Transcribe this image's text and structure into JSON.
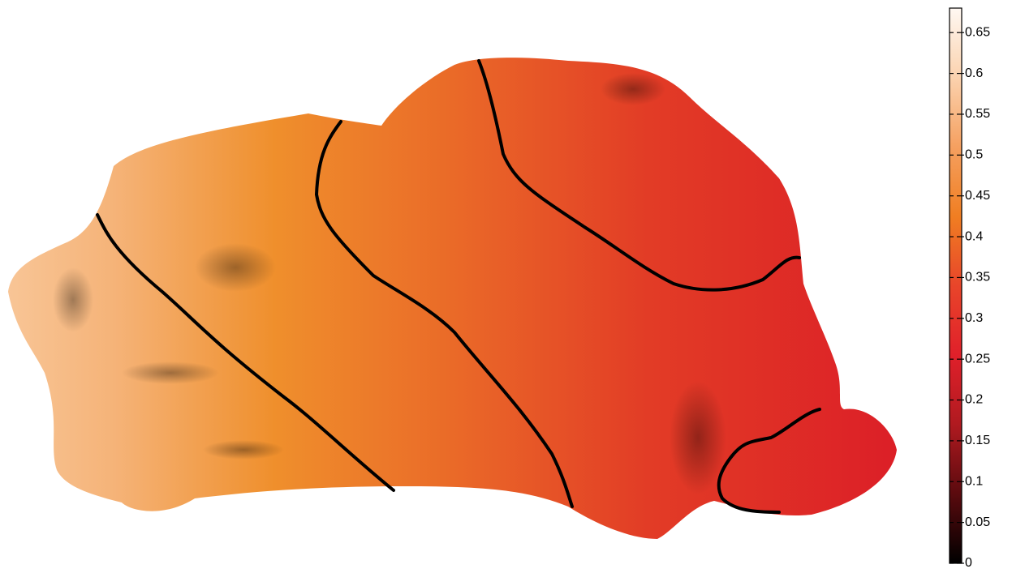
{
  "chart_data": {
    "type": "colorbar",
    "clim": [
      0,
      0.68
    ],
    "ticks": [
      0,
      0.05,
      0.1,
      0.15,
      0.2,
      0.25,
      0.3,
      0.35,
      0.4,
      0.45,
      0.5,
      0.55,
      0.6,
      0.65
    ],
    "colors": [
      "#000000",
      "#5a0a0e",
      "#b01a20",
      "#e0202a",
      "#e8452a",
      "#f07e22",
      "#f5a060",
      "#fbd2ae",
      "#fff8f2"
    ]
  }
}
